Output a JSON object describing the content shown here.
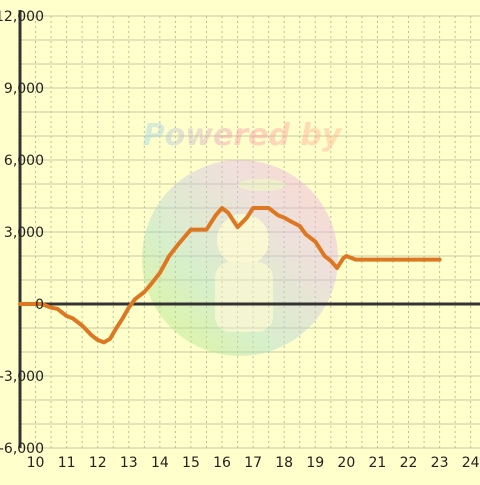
{
  "chart_data": {
    "type": "line",
    "title": "",
    "xlabel": "",
    "ylabel": "",
    "xlim": [
      9.5,
      24.3
    ],
    "ylim": [
      -6000,
      12000
    ],
    "x_ticks": [
      10,
      11,
      12,
      13,
      14,
      15,
      16,
      17,
      18,
      19,
      20,
      21,
      22,
      23,
      24
    ],
    "y_ticks": [
      -6000,
      -3000,
      0,
      3000,
      6000,
      9000,
      12000
    ],
    "y_tick_labels": [
      "-6,000",
      "-3,000",
      "0",
      "3,000",
      "6,000",
      "9,000",
      "12,000"
    ],
    "x_minor_step": 0.5,
    "y_minor_step": 1000,
    "grid": true,
    "series": [
      {
        "name": "",
        "color": "#dd7722",
        "x": [
          9.5,
          10.0,
          10.2,
          10.5,
          10.7,
          11.0,
          11.2,
          11.5,
          11.8,
          12.0,
          12.2,
          12.4,
          12.6,
          12.8,
          13.0,
          13.2,
          13.5,
          13.7,
          14.0,
          14.3,
          14.6,
          15.0,
          15.3,
          15.5,
          15.8,
          16.0,
          16.2,
          16.5,
          16.8,
          17.0,
          17.3,
          17.5,
          17.8,
          18.0,
          18.2,
          18.5,
          18.7,
          19.0,
          19.3,
          19.5,
          19.7,
          19.9,
          20.0,
          20.3,
          20.5,
          21.0,
          22.0,
          23.0
        ],
        "y": [
          0,
          0,
          0,
          -150,
          -200,
          -500,
          -600,
          -900,
          -1300,
          -1500,
          -1600,
          -1450,
          -1000,
          -600,
          -150,
          200,
          500,
          800,
          1300,
          2000,
          2500,
          3100,
          3100,
          3100,
          3700,
          4000,
          3800,
          3200,
          3600,
          4000,
          4000,
          4000,
          3700,
          3600,
          3450,
          3250,
          2900,
          2600,
          2000,
          1800,
          1500,
          1900,
          2000,
          1850,
          1850,
          1850,
          1850,
          1850
        ]
      }
    ],
    "watermark_text": "Powered by"
  }
}
